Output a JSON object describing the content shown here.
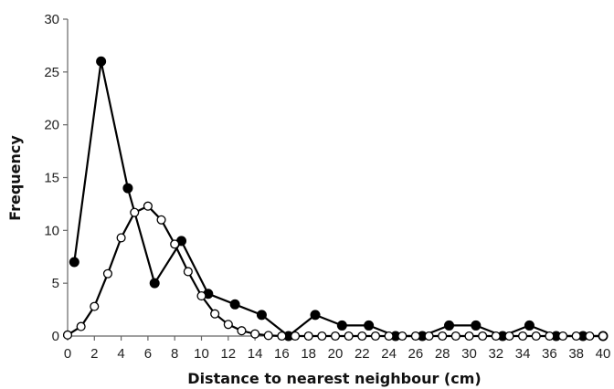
{
  "chart_data": {
    "type": "line",
    "title": "",
    "xlabel": "Distance to nearest neighbour (cm)",
    "ylabel": "Frequency",
    "xlim": [
      0,
      40
    ],
    "ylim": [
      0,
      30
    ],
    "x_ticks": [
      0,
      2,
      4,
      6,
      8,
      10,
      12,
      14,
      16,
      18,
      20,
      22,
      24,
      26,
      28,
      30,
      32,
      34,
      36,
      38,
      40
    ],
    "y_ticks": [
      0,
      5,
      10,
      15,
      20,
      25,
      30
    ],
    "grid": false,
    "legend": "none",
    "series": [
      {
        "marker": "filled-circle",
        "color": "#000000",
        "x": [
          0.5,
          2.5,
          4.5,
          6.5,
          8.5,
          10.5,
          12.5,
          14.5,
          16.5,
          18.5,
          20.5,
          22.5,
          24.5,
          26.5,
          28.5,
          30.5,
          32.5,
          34.5,
          36.5,
          38.5,
          40
        ],
        "y": [
          7,
          26,
          14,
          5,
          9,
          4,
          3,
          2,
          0,
          2,
          1,
          1,
          0,
          0,
          1,
          1,
          0,
          1,
          0,
          0,
          0
        ]
      },
      {
        "marker": "open-circle",
        "color": "#000000",
        "x": [
          0,
          1,
          2,
          3,
          4,
          5,
          6,
          7,
          8,
          9,
          10,
          11,
          12,
          13,
          14,
          15,
          16,
          17,
          18,
          19,
          20,
          21,
          22,
          23,
          24,
          25,
          26,
          27,
          28,
          29,
          30,
          31,
          32,
          33,
          34,
          35,
          36,
          37,
          38,
          39,
          40
        ],
        "y": [
          0.1,
          0.9,
          2.8,
          5.9,
          9.3,
          11.7,
          12.3,
          11.0,
          8.7,
          6.1,
          3.8,
          2.1,
          1.1,
          0.5,
          0.2,
          0.05,
          0,
          0,
          0,
          0,
          0,
          0,
          0,
          0,
          0,
          0,
          0,
          0,
          0,
          0,
          0,
          0,
          0,
          0,
          0,
          0,
          0,
          0,
          0,
          0,
          0
        ]
      }
    ]
  }
}
